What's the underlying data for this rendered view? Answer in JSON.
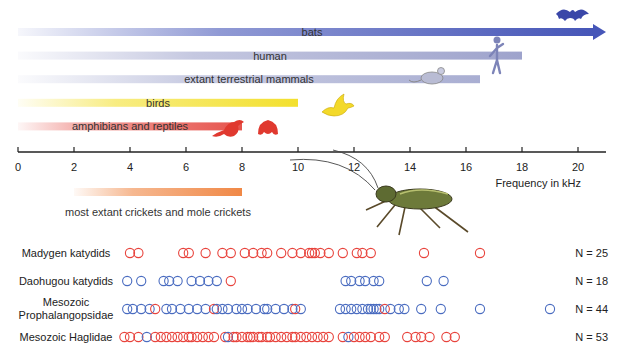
{
  "chart_data": {
    "type": "strip",
    "x_label": "Frequency in kHz",
    "xlim": [
      0,
      21
    ],
    "xticks": [
      0,
      2,
      4,
      6,
      8,
      10,
      12,
      14,
      16,
      18,
      20
    ],
    "ranges": [
      {
        "name": "bats",
        "color": "#4656b8",
        "start": 0,
        "end": 21,
        "marker": "arrow"
      },
      {
        "name": "human",
        "color": "#9ea3cc",
        "start": 0,
        "end": 18
      },
      {
        "name": "extant terrestrial mammals",
        "color": "#a9aed2",
        "start": 0,
        "end": 16.5
      },
      {
        "name": "birds",
        "color": "#f3e02e",
        "start": 0,
        "end": 10
      },
      {
        "name": "amphibians and reptiles",
        "color": "#e6534c",
        "start": 0,
        "end": 8
      }
    ],
    "cricket_range": {
      "name": "most extant crickets and mole crickets",
      "color": "#f08846",
      "start": 2,
      "end": 8
    },
    "series": [
      {
        "name": "Madygen katydids",
        "n_label": "N = 25",
        "color": "#e8433c",
        "values": [
          4.0,
          4.3,
          5.9,
          6.1,
          6.7,
          7.3,
          7.6,
          8.1,
          8.4,
          8.7,
          8.9,
          9.4,
          9.8,
          10.1,
          10.4,
          10.5,
          10.6,
          10.8,
          11.1,
          11.6,
          12.1,
          12.3,
          12.6,
          14.5,
          16.5
        ]
      },
      {
        "name": "Daohugou katydids",
        "n_label": "N = 18",
        "color": "#4a6cc0",
        "values": [
          3.9,
          4.4,
          5.2,
          5.4,
          5.7,
          6.2,
          6.5,
          6.8,
          7.1,
          7.6,
          11.7,
          11.9,
          12.2,
          12.4,
          12.7,
          12.9,
          14.6,
          15.2
        ],
        "colors": [
          "#4a6cc0",
          "#4a6cc0",
          "#4a6cc0",
          "#4a6cc0",
          "#4a6cc0",
          "#4a6cc0",
          "#4a6cc0",
          "#4a6cc0",
          "#4a6cc0",
          "#e8433c",
          "#4a6cc0",
          "#4a6cc0",
          "#4a6cc0",
          "#4a6cc0",
          "#4a6cc0",
          "#4a6cc0",
          "#4a6cc0",
          "#4a6cc0"
        ]
      },
      {
        "name": "Mesozoic Prophalangopsidae",
        "n_label": "N = 44",
        "color": "#4a6cc0",
        "values": [
          3.9,
          4.1,
          4.4,
          4.7,
          4.9,
          5.3,
          5.5,
          5.8,
          6.1,
          6.4,
          6.7,
          7.0,
          7.1,
          7.3,
          7.5,
          7.8,
          8.0,
          8.2,
          8.5,
          8.8,
          8.9,
          9.2,
          9.5,
          9.8,
          9.9,
          10.1,
          11.5,
          11.7,
          11.9,
          12.1,
          12.3,
          12.5,
          12.6,
          12.7,
          12.8,
          12.9,
          13.1,
          13.3,
          13.6,
          13.8,
          14.4,
          15.1,
          16.5,
          19.0
        ],
        "colors": [
          "#4a6cc0",
          "#4a6cc0",
          "#4a6cc0",
          "#4a6cc0",
          "#e8433c",
          "#4a6cc0",
          "#4a6cc0",
          "#4a6cc0",
          "#4a6cc0",
          "#4a6cc0",
          "#4a6cc0",
          "#e8433c",
          "#4a6cc0",
          "#4a6cc0",
          "#4a6cc0",
          "#4a6cc0",
          "#4a6cc0",
          "#4a6cc0",
          "#4a6cc0",
          "#4a6cc0",
          "#4a6cc0",
          "#4a6cc0",
          "#4a6cc0",
          "#4a6cc0",
          "#e8433c",
          "#4a6cc0",
          "#4a6cc0",
          "#4a6cc0",
          "#4a6cc0",
          "#4a6cc0",
          "#4a6cc0",
          "#4a6cc0",
          "#4a6cc0",
          "#4a6cc0",
          "#4a6cc0",
          "#4a6cc0",
          "#e8433c",
          "#4a6cc0",
          "#4a6cc0",
          "#4a6cc0",
          "#4a6cc0",
          "#4a6cc0",
          "#4a6cc0",
          "#4a6cc0"
        ]
      },
      {
        "name": "Mesozoic Haglidae",
        "n_label": "N = 53",
        "color": "#e8433c",
        "values": [
          3.8,
          4.0,
          4.3,
          4.6,
          4.9,
          5.1,
          5.3,
          5.5,
          5.7,
          5.9,
          6.1,
          6.2,
          6.4,
          6.6,
          6.8,
          7.0,
          7.4,
          7.5,
          7.7,
          7.8,
          8.0,
          8.2,
          8.3,
          8.4,
          8.6,
          8.7,
          8.9,
          9.0,
          9.2,
          9.4,
          9.6,
          9.8,
          9.9,
          10.1,
          10.3,
          10.5,
          10.7,
          10.9,
          11.1,
          11.6,
          11.8,
          12.0,
          12.2,
          12.4,
          12.6,
          12.9,
          13.1,
          13.9,
          14.2,
          14.4,
          14.7,
          15.3,
          15.6
        ],
        "colors": [
          "#e8433c",
          "#e8433c",
          "#e8433c",
          "#4a6cc0",
          "#e8433c",
          "#e8433c",
          "#e8433c",
          "#e8433c",
          "#e8433c",
          "#e8433c",
          "#e8433c",
          "#e8433c",
          "#e8433c",
          "#e8433c",
          "#e8433c",
          "#e8433c",
          "#e8433c",
          "#4a6cc0",
          "#e8433c",
          "#e8433c",
          "#e8433c",
          "#e8433c",
          "#e8433c",
          "#e8433c",
          "#e8433c",
          "#e8433c",
          "#e8433c",
          "#e8433c",
          "#e8433c",
          "#e8433c",
          "#e8433c",
          "#e8433c",
          "#e8433c",
          "#e8433c",
          "#e8433c",
          "#e8433c",
          "#e8433c",
          "#e8433c",
          "#e8433c",
          "#e8433c",
          "#4a6cc0",
          "#e8433c",
          "#e8433c",
          "#e8433c",
          "#e8433c",
          "#e8433c",
          "#e8433c",
          "#e8433c",
          "#e8433c",
          "#e8433c",
          "#e8433c",
          "#e8433c",
          "#e8433c"
        ]
      }
    ]
  }
}
